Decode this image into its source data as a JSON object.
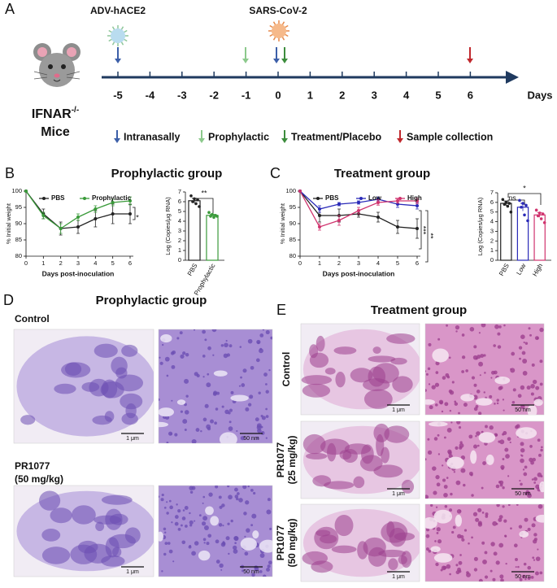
{
  "panel_labels": [
    "A",
    "B",
    "C",
    "D",
    "E"
  ],
  "timeline": {
    "agents": [
      "ADV-hACE2",
      "SARS-CoV-2"
    ],
    "subject": [
      "IFNAR",
      "-/-",
      "Mice"
    ],
    "days": [
      -5,
      -4,
      -3,
      -2,
      -1,
      0,
      1,
      2,
      3,
      4,
      5,
      6
    ],
    "unit": "Days",
    "legend": [
      "Intranasally",
      "Prophylactic",
      "Treatment/Placebo",
      "Sample collection"
    ]
  },
  "chart_data": [
    {
      "type": "line",
      "title": "Prophylactic group",
      "x": [
        0,
        1,
        2,
        3,
        4,
        5,
        6
      ],
      "xlim": [
        0,
        6
      ],
      "xticks": [
        0,
        1,
        2,
        3,
        4,
        5,
        6
      ],
      "ylim": [
        80,
        100
      ],
      "yticks": [
        80,
        85,
        90,
        95,
        100
      ],
      "xlabel": "Days post-inoculation",
      "ylabel": "% Initial weight",
      "series": [
        {
          "name": "PBS",
          "color": "#222222",
          "values": [
            100,
            93,
            88.5,
            89,
            91.5,
            93,
            93
          ],
          "errors": [
            0,
            1.5,
            2,
            2,
            2.5,
            3,
            3
          ]
        },
        {
          "name": "Prophylactic",
          "color": "#3a9a3a",
          "values": [
            100,
            92.5,
            88.5,
            92,
            94.5,
            96.5,
            97
          ],
          "errors": [
            0,
            1,
            1.5,
            1,
            1,
            1,
            1.2
          ]
        }
      ],
      "annotations": [
        "*"
      ]
    },
    {
      "type": "bar",
      "categories": [
        "PBS",
        "Prophylactic"
      ],
      "colors": [
        "#222222",
        "#3a9a3a"
      ],
      "values": [
        6.1,
        4.6
      ],
      "errors": [
        0.25,
        0.12
      ],
      "points": [
        [
          6.6,
          6.3,
          6.2,
          6.0,
          5.8,
          5.5
        ],
        [
          4.9,
          4.7,
          4.6,
          4.5,
          4.4,
          4.5
        ]
      ],
      "ylim": [
        0,
        7
      ],
      "yticks": [
        0,
        1,
        2,
        3,
        4,
        5,
        6,
        7
      ],
      "ylabel": "Log (Copies/μg RNA)",
      "annotations": [
        "**"
      ]
    },
    {
      "type": "line",
      "title": "Treatment group",
      "x": [
        0,
        1,
        2,
        3,
        4,
        5,
        6
      ],
      "xlim": [
        0,
        6
      ],
      "xticks": [
        0,
        1,
        2,
        3,
        4,
        5,
        6
      ],
      "ylim": [
        80,
        100
      ],
      "yticks": [
        80,
        85,
        90,
        95,
        100
      ],
      "xlabel": "Days post-inoculation",
      "ylabel": "% Initial weight",
      "series": [
        {
          "name": "PBS",
          "color": "#222222",
          "values": [
            100,
            92.5,
            92.5,
            93,
            92,
            89,
            88.5
          ],
          "errors": [
            0,
            2,
            2,
            1,
            1.5,
            2,
            3
          ]
        },
        {
          "name": "Low",
          "color": "#2a2ab8",
          "values": [
            100,
            94.5,
            96,
            96.5,
            97.5,
            96,
            95.5
          ],
          "errors": [
            0,
            1,
            0.5,
            0.5,
            0.7,
            1,
            1
          ]
        },
        {
          "name": "High",
          "color": "#d0336e",
          "values": [
            100,
            89,
            91,
            94,
            96.5,
            97,
            97
          ],
          "errors": [
            0,
            1,
            1.5,
            1,
            0.8,
            0.7,
            0.8
          ]
        }
      ],
      "annotations": [
        "***",
        "**"
      ]
    },
    {
      "type": "bar",
      "categories": [
        "PBS",
        "Low",
        "High"
      ],
      "colors": [
        "#222222",
        "#2a2ab8",
        "#d0336e"
      ],
      "values": [
        5.9,
        5.5,
        4.7
      ],
      "errors": [
        0.25,
        0.4,
        0.25
      ],
      "points": [
        [
          6.3,
          6.0,
          5.9,
          5.8,
          5.6,
          5.0
        ],
        [
          6.2,
          5.9,
          5.7,
          5.5,
          4.7,
          4.1
        ],
        [
          5.2,
          4.9,
          4.8,
          4.6,
          4.3,
          3.9
        ]
      ],
      "ylim": [
        0,
        7
      ],
      "yticks": [
        0,
        1,
        2,
        3,
        4,
        5,
        6,
        7
      ],
      "ylabel": "Log (Copies/μg RNA)",
      "annotations": [
        "ns",
        "*"
      ]
    }
  ],
  "histology": {
    "prophylactic": {
      "title": "Prophylactic group",
      "rows": [
        [
          "Control"
        ],
        [
          "PR1077",
          "(50 mg/kg)"
        ]
      ]
    },
    "treatment": {
      "title": "Treatment group",
      "rows": [
        [
          "Control"
        ],
        [
          "PR1077",
          "(25 mg/kg)"
        ],
        [
          "PR1077",
          "(50 mg/kg)"
        ]
      ]
    },
    "scale_bars": [
      "1 μm",
      "50 nm"
    ]
  }
}
